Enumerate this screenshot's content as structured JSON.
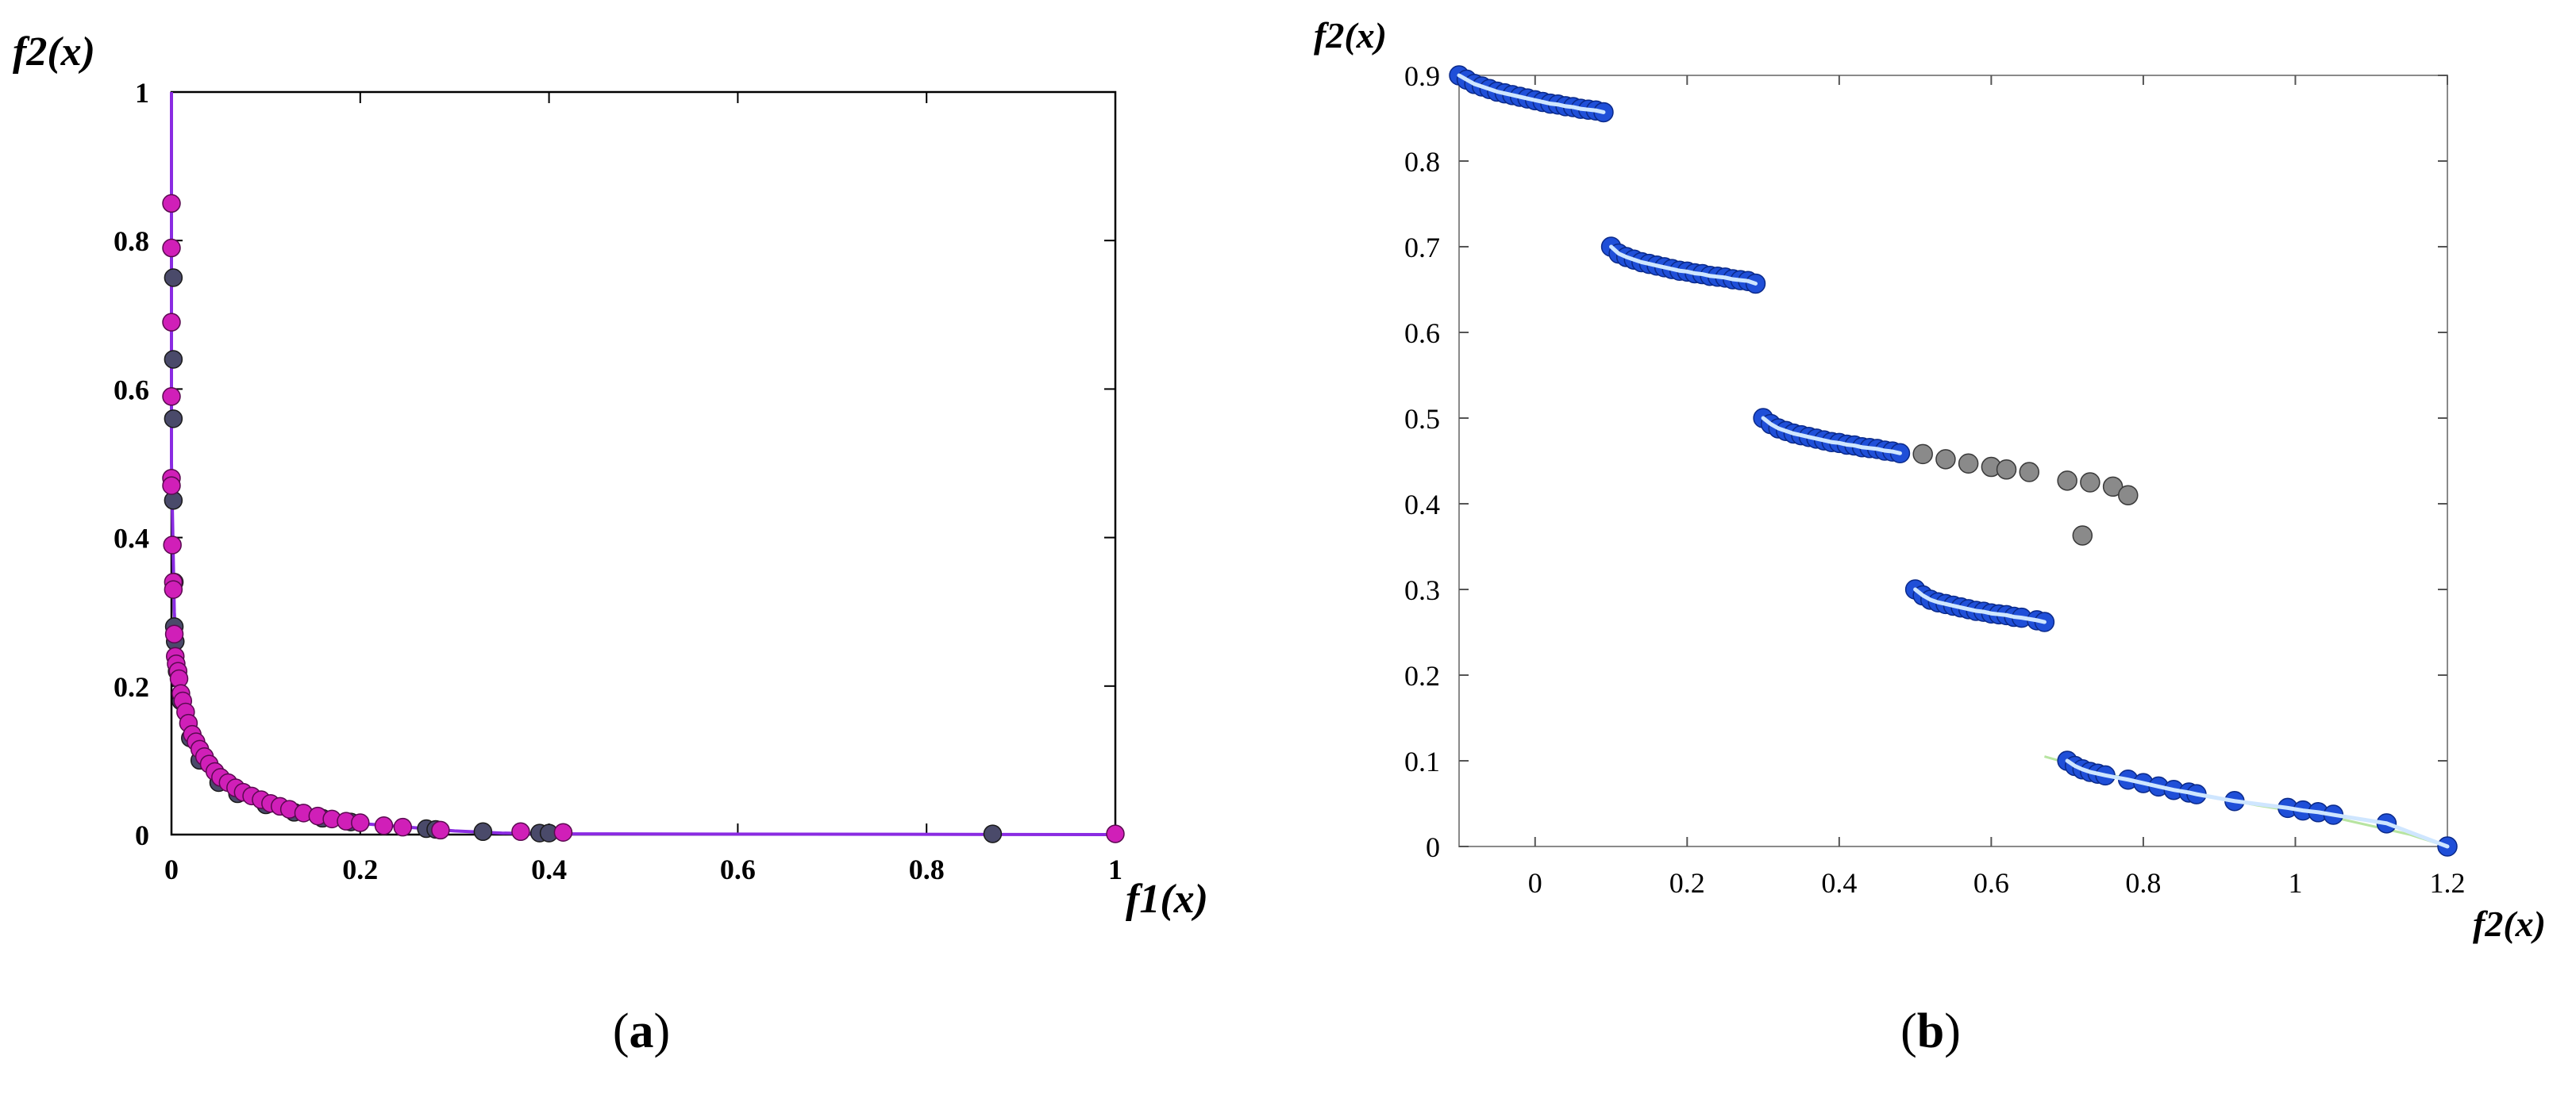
{
  "figure": {
    "panel_a_caption": "(a)",
    "panel_b_caption": "(b)",
    "caption_a_letter": "a",
    "caption_b_letter": "b",
    "paren_open": "(",
    "paren_close": ")"
  },
  "chart_data": [
    {
      "type": "scatter",
      "panel": "a",
      "xlabel": "f1(x)",
      "ylabel": "f2(x)",
      "xlim": [
        0,
        1
      ],
      "ylim": [
        0,
        1
      ],
      "xticks": [
        0,
        0.2,
        0.4,
        0.6,
        0.8,
        1
      ],
      "xtick_labels": [
        "0",
        "0.2",
        "0.4",
        "0.6",
        "0.8",
        "1"
      ],
      "yticks": [
        0,
        0.2,
        0.4,
        0.6,
        0.8,
        1
      ],
      "ytick_labels": [
        "0",
        "0.2",
        "0.4",
        "0.6",
        "0.8",
        "1"
      ],
      "grid": false,
      "colors": {
        "front_line": "#8a2be2",
        "series_dark": "#4a4a6a",
        "series_magenta": "#d01fb8"
      },
      "series": [
        {
          "role": "true-front",
          "style": "line",
          "x": [
            0,
            0,
            0.003,
            0.006,
            0.01,
            0.015,
            0.02,
            0.03,
            0.04,
            0.05,
            0.07,
            0.1,
            0.13,
            0.16,
            0.2,
            0.25,
            0.3,
            0.35,
            0.4,
            1
          ],
          "y": [
            1,
            0.5,
            0.3,
            0.22,
            0.18,
            0.15,
            0.125,
            0.1,
            0.085,
            0.07,
            0.055,
            0.04,
            0.03,
            0.022,
            0.015,
            0.01,
            0.005,
            0.002,
            0.001,
            0
          ]
        },
        {
          "role": "dark-points",
          "style": "points",
          "x": [
            0.002,
            0.002,
            0.002,
            0.002,
            0.003,
            0.003,
            0.004,
            0.006,
            0.01,
            0.02,
            0.03,
            0.05,
            0.07,
            0.1,
            0.13,
            0.16,
            0.19,
            0.27,
            0.28,
            0.33,
            0.39,
            0.4,
            0.87
          ],
          "y": [
            0.75,
            0.64,
            0.56,
            0.45,
            0.34,
            0.28,
            0.26,
            0.22,
            0.18,
            0.13,
            0.1,
            0.07,
            0.055,
            0.04,
            0.03,
            0.022,
            0.017,
            0.008,
            0.007,
            0.004,
            0.002,
            0.002,
            0.001
          ]
        },
        {
          "role": "magenta-points",
          "style": "points",
          "x": [
            0,
            0,
            0,
            0,
            0,
            0,
            0.001,
            0.002,
            0.002,
            0.003,
            0.004,
            0.005,
            0.007,
            0.008,
            0.01,
            0.012,
            0.015,
            0.018,
            0.022,
            0.026,
            0.03,
            0.035,
            0.04,
            0.046,
            0.052,
            0.06,
            0.068,
            0.076,
            0.085,
            0.095,
            0.105,
            0.115,
            0.125,
            0.14,
            0.155,
            0.17,
            0.185,
            0.2,
            0.225,
            0.245,
            0.285,
            0.37,
            0.415,
            1.0
          ],
          "y": [
            0.85,
            0.79,
            0.69,
            0.59,
            0.48,
            0.47,
            0.39,
            0.34,
            0.33,
            0.27,
            0.24,
            0.23,
            0.22,
            0.21,
            0.19,
            0.18,
            0.165,
            0.15,
            0.135,
            0.125,
            0.115,
            0.105,
            0.095,
            0.085,
            0.077,
            0.07,
            0.063,
            0.057,
            0.052,
            0.047,
            0.042,
            0.038,
            0.034,
            0.029,
            0.025,
            0.021,
            0.018,
            0.016,
            0.012,
            0.01,
            0.006,
            0.004,
            0.003,
            0.001
          ]
        }
      ]
    },
    {
      "type": "scatter",
      "panel": "b",
      "xlabel": "f2(x)",
      "ylabel": "f2(x)",
      "xlim": [
        -0.1,
        1.2
      ],
      "ylim": [
        0,
        0.9
      ],
      "xticks": [
        0,
        0.2,
        0.4,
        0.6,
        0.8,
        1,
        1.2
      ],
      "xtick_labels": [
        "0",
        "0.2",
        "0.4",
        "0.6",
        "0.8",
        "1",
        "1.2"
      ],
      "yticks": [
        0,
        0.1,
        0.2,
        0.3,
        0.4,
        0.5,
        0.6,
        0.7,
        0.8,
        0.9
      ],
      "ytick_labels": [
        "0",
        "0.1",
        "0.2",
        "0.3",
        "0.4",
        "0.5",
        "0.6",
        "0.7",
        "0.8",
        "0.9"
      ],
      "grid": false,
      "colors": {
        "front_line": "#b7e4a0",
        "series_blue": "#1f4fd8",
        "series_blue_highlight": "#cfe6ff",
        "series_gray": "#8a8a8a"
      },
      "series": [
        {
          "role": "segment-1",
          "style": "points",
          "x": [
            -0.1,
            -0.09,
            -0.08,
            -0.07,
            -0.06,
            -0.05,
            -0.04,
            -0.03,
            -0.02,
            -0.01,
            0.0,
            0.01,
            0.02,
            0.03,
            0.04,
            0.05,
            0.06,
            0.07,
            0.08,
            0.09
          ],
          "y": [
            0.9,
            0.895,
            0.89,
            0.887,
            0.884,
            0.881,
            0.879,
            0.877,
            0.875,
            0.873,
            0.871,
            0.869,
            0.867,
            0.866,
            0.864,
            0.863,
            0.861,
            0.86,
            0.859,
            0.857
          ]
        },
        {
          "role": "segment-2",
          "style": "points",
          "x": [
            0.1,
            0.11,
            0.12,
            0.13,
            0.14,
            0.15,
            0.16,
            0.17,
            0.18,
            0.19,
            0.2,
            0.21,
            0.22,
            0.23,
            0.24,
            0.25,
            0.26,
            0.27,
            0.28,
            0.29
          ],
          "y": [
            0.7,
            0.692,
            0.688,
            0.685,
            0.682,
            0.68,
            0.678,
            0.676,
            0.674,
            0.672,
            0.671,
            0.669,
            0.668,
            0.666,
            0.665,
            0.664,
            0.662,
            0.661,
            0.66,
            0.657
          ]
        },
        {
          "role": "segment-3",
          "style": "points",
          "x": [
            0.3,
            0.31,
            0.32,
            0.33,
            0.34,
            0.35,
            0.36,
            0.37,
            0.38,
            0.39,
            0.4,
            0.41,
            0.42,
            0.43,
            0.44,
            0.45,
            0.46,
            0.47,
            0.48
          ],
          "y": [
            0.5,
            0.493,
            0.488,
            0.485,
            0.482,
            0.48,
            0.478,
            0.476,
            0.474,
            0.472,
            0.471,
            0.469,
            0.468,
            0.466,
            0.465,
            0.464,
            0.462,
            0.461,
            0.459
          ]
        },
        {
          "role": "segment-4",
          "style": "points",
          "x": [
            0.5,
            0.51,
            0.52,
            0.53,
            0.54,
            0.55,
            0.56,
            0.57,
            0.58,
            0.59,
            0.6,
            0.61,
            0.62,
            0.63,
            0.64,
            0.66,
            0.67
          ],
          "y": [
            0.3,
            0.293,
            0.288,
            0.285,
            0.283,
            0.281,
            0.279,
            0.277,
            0.275,
            0.274,
            0.272,
            0.271,
            0.27,
            0.268,
            0.267,
            0.264,
            0.262
          ]
        },
        {
          "role": "segment-5",
          "style": "points",
          "x": [
            0.7,
            0.71,
            0.72,
            0.73,
            0.74,
            0.75,
            0.78,
            0.8,
            0.82,
            0.84,
            0.86,
            0.87,
            0.92,
            0.99,
            1.01,
            1.03,
            1.05,
            1.12,
            1.2
          ],
          "y": [
            0.1,
            0.094,
            0.09,
            0.087,
            0.085,
            0.083,
            0.078,
            0.074,
            0.07,
            0.066,
            0.063,
            0.061,
            0.053,
            0.045,
            0.042,
            0.04,
            0.037,
            0.027,
            0.0
          ]
        },
        {
          "role": "gray-points",
          "style": "points",
          "x": [
            0.51,
            0.54,
            0.57,
            0.6,
            0.62,
            0.65,
            0.7,
            0.73,
            0.76,
            0.72,
            0.78
          ],
          "y": [
            0.458,
            0.452,
            0.447,
            0.443,
            0.44,
            0.437,
            0.427,
            0.425,
            0.42,
            0.363,
            0.41
          ]
        },
        {
          "role": "front-line",
          "style": "line",
          "x": [
            0.67,
            0.75,
            0.85,
            0.95,
            1.05,
            1.15,
            1.2
          ],
          "y": [
            0.105,
            0.085,
            0.065,
            0.048,
            0.034,
            0.014,
            0.0
          ]
        }
      ]
    }
  ]
}
